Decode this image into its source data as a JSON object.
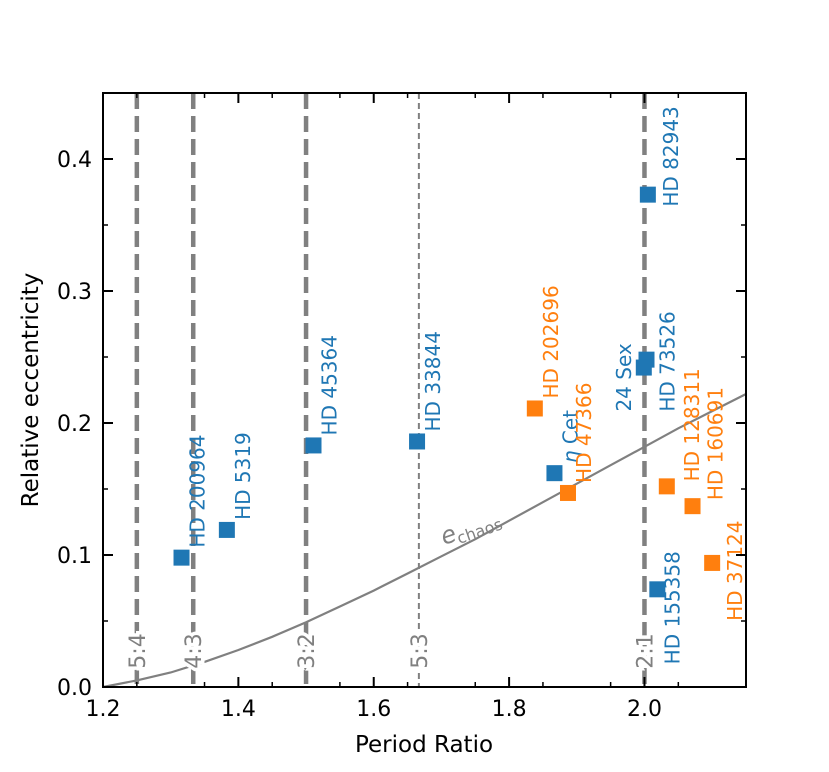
{
  "chart_data": {
    "type": "scatter",
    "title": "",
    "xlabel": "Period Ratio",
    "ylabel": "Relative eccentricity",
    "xlim": [
      1.2,
      2.15
    ],
    "ylim": [
      0.0,
      0.45
    ],
    "xticks": [
      {
        "value": 1.2,
        "label": "1.2"
      },
      {
        "value": 1.4,
        "label": "1.4"
      },
      {
        "value": 1.6,
        "label": "1.6"
      },
      {
        "value": 1.8,
        "label": "1.8"
      },
      {
        "value": 2.0,
        "label": "2.0"
      }
    ],
    "yticks": [
      {
        "value": 0.0,
        "label": "0.0"
      },
      {
        "value": 0.1,
        "label": "0.1"
      },
      {
        "value": 0.2,
        "label": "0.2"
      },
      {
        "value": 0.3,
        "label": "0.3"
      },
      {
        "value": 0.4,
        "label": "0.4"
      }
    ],
    "grid": false,
    "colors": {
      "blue": "#1f77b4",
      "orange": "#ff7f0e",
      "gray": "#808080",
      "axis": "#000000"
    },
    "resonances": [
      {
        "x": 1.25,
        "label": "5:4",
        "style": "thick-dashed"
      },
      {
        "x": 1.3333,
        "label": "4:3",
        "style": "thick-dashed"
      },
      {
        "x": 1.5,
        "label": "3:2",
        "style": "thick-dashed"
      },
      {
        "x": 1.6667,
        "label": "5:3",
        "style": "thin-dashed"
      },
      {
        "x": 2.0,
        "label": "2:1",
        "style": "thick-dashed"
      }
    ],
    "chaos_curve": {
      "label_main": "e",
      "label_sub": "chaos",
      "x": [
        1.2,
        1.25,
        1.3,
        1.35,
        1.4,
        1.45,
        1.5,
        1.55,
        1.6,
        1.65,
        1.7,
        1.75,
        1.8,
        1.85,
        1.9,
        1.95,
        2.0,
        2.05,
        2.1,
        2.15
      ],
      "y": [
        0.0,
        0.005,
        0.011,
        0.019,
        0.028,
        0.038,
        0.049,
        0.061,
        0.073,
        0.086,
        0.099,
        0.112,
        0.126,
        0.14,
        0.154,
        0.168,
        0.182,
        0.196,
        0.209,
        0.222
      ]
    },
    "series": [
      {
        "name": "blue",
        "color": "#1f77b4",
        "points": [
          {
            "x": 1.316,
            "y": 0.098,
            "label": "HD 200964",
            "eta": false
          },
          {
            "x": 1.383,
            "y": 0.119,
            "label": "HD 5319",
            "eta": false
          },
          {
            "x": 1.511,
            "y": 0.183,
            "label": "HD 45364",
            "eta": false
          },
          {
            "x": 1.664,
            "y": 0.186,
            "label": "HD 33844",
            "eta": false
          },
          {
            "x": 1.867,
            "y": 0.162,
            "label": "Cet",
            "eta": true
          },
          {
            "x": 2.005,
            "y": 0.373,
            "label": "HD 82943",
            "eta": false
          },
          {
            "x": 2.003,
            "y": 0.248,
            "label": "HD 73526",
            "eta": false
          },
          {
            "x": 1.999,
            "y": 0.242,
            "label": "24 Sex",
            "eta": false
          },
          {
            "x": 2.019,
            "y": 0.074,
            "label": "HD 155358",
            "eta": false
          }
        ]
      },
      {
        "name": "orange",
        "color": "#ff7f0e",
        "points": [
          {
            "x": 1.838,
            "y": 0.211,
            "label": "HD 202696",
            "eta": false
          },
          {
            "x": 1.887,
            "y": 0.147,
            "label": "HD 47366",
            "eta": false
          },
          {
            "x": 2.033,
            "y": 0.152,
            "label": "HD 128311",
            "eta": false
          },
          {
            "x": 2.071,
            "y": 0.137,
            "label": "HD 160691",
            "eta": false
          },
          {
            "x": 2.1,
            "y": 0.094,
            "label": "HD 37124",
            "eta": false
          }
        ]
      }
    ]
  }
}
